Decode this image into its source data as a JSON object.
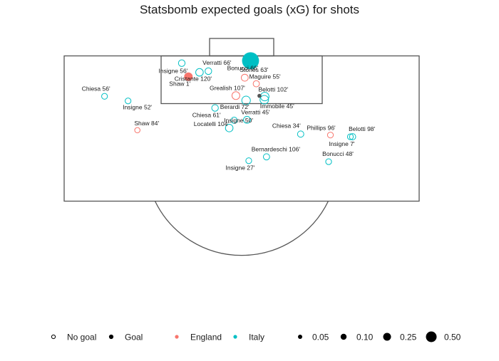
{
  "chart_data": {
    "type": "scatter",
    "title": "Statsbomb expected goals (xG) for shots",
    "xlim": [
      0,
      80
    ],
    "ylim": [
      60,
      120
    ],
    "teams": [
      {
        "name": "England",
        "color": "#F8766D"
      },
      {
        "name": "Italy",
        "color": "#00BFC4"
      }
    ],
    "outcome_legend": [
      {
        "label": "No goal",
        "goal": false
      },
      {
        "label": "Goal",
        "goal": true
      }
    ],
    "size_legend": [
      {
        "label": "0.05",
        "value": 0.05
      },
      {
        "label": "0.10",
        "value": 0.1
      },
      {
        "label": "0.25",
        "value": 0.25
      },
      {
        "label": "0.50",
        "value": 0.5
      }
    ],
    "shots": [
      {
        "label": "Bonucci 66'",
        "team": "Italy",
        "goal": true,
        "xg": 0.7,
        "x": 42.0,
        "y": 118.0
      },
      {
        "label": "Insigne 56'",
        "team": "Italy",
        "goal": false,
        "xg": 0.05,
        "x": 26.5,
        "y": 117.0
      },
      {
        "label": "Verratti 66'",
        "team": "Italy",
        "goal": false,
        "xg": 0.05,
        "x": 32.5,
        "y": 113.7
      },
      {
        "label": "Cristante 120'",
        "team": "Italy",
        "goal": false,
        "xg": 0.08,
        "x": 30.5,
        "y": 113.2
      },
      {
        "label": "Shaw 1'",
        "team": "England",
        "goal": true,
        "xg": 0.09,
        "x": 28.0,
        "y": 111.4
      },
      {
        "label": "Stones 63'",
        "team": "England",
        "goal": false,
        "xg": 0.06,
        "x": 40.7,
        "y": 111.0
      },
      {
        "label": "Maguire 55'",
        "team": "England",
        "goal": false,
        "xg": 0.04,
        "x": 43.3,
        "y": 108.5
      },
      {
        "label": "Grealish 107'",
        "team": "England",
        "goal": false,
        "xg": 0.09,
        "x": 38.7,
        "y": 103.6
      },
      {
        "label": "Belotti 102'",
        "team": "Italy",
        "goal": false,
        "xg": 0.12,
        "x": 45.2,
        "y": 103.2
      },
      {
        "label": "Berardi 72'",
        "team": "Italy",
        "goal": false,
        "xg": 0.12,
        "x": 41.0,
        "y": 101.6
      },
      {
        "label": "Immobile 45'",
        "team": "Italy",
        "goal": false,
        "xg": 0.12,
        "x": 45.1,
        "y": 101.9
      },
      {
        "label": "Chiesa 56'",
        "team": "Italy",
        "goal": false,
        "xg": 0.03,
        "x": 9.1,
        "y": 103.3
      },
      {
        "label": "Insigne 52'",
        "team": "Italy",
        "goal": false,
        "xg": 0.03,
        "x": 14.4,
        "y": 101.4
      },
      {
        "label": "Chiesa 61'",
        "team": "Italy",
        "goal": false,
        "xg": 0.05,
        "x": 34.0,
        "y": 98.5
      },
      {
        "label": "Verratti 45'",
        "team": "Italy",
        "goal": false,
        "xg": 0.06,
        "x": 41.2,
        "y": 93.6
      },
      {
        "label": "Locatelli 104'",
        "team": "Italy",
        "goal": false,
        "xg": 0.04,
        "x": 38.3,
        "y": 93.4
      },
      {
        "label": "Insigne 50'",
        "team": "Italy",
        "goal": false,
        "xg": 0.08,
        "x": 37.2,
        "y": 90.2
      },
      {
        "label": "Shaw 84'",
        "team": "England",
        "goal": false,
        "xg": 0.02,
        "x": 16.5,
        "y": 89.3
      },
      {
        "label": "Chiesa 34'",
        "team": "Italy",
        "goal": false,
        "xg": 0.04,
        "x": 53.3,
        "y": 87.7
      },
      {
        "label": "Phillips 96'",
        "team": "England",
        "goal": false,
        "xg": 0.03,
        "x": 60.0,
        "y": 87.3
      },
      {
        "label": "Belotti 98'",
        "team": "Italy",
        "goal": false,
        "xg": 0.04,
        "x": 65.0,
        "y": 86.6
      },
      {
        "label": "Insigne 7'",
        "team": "Italy",
        "goal": false,
        "xg": 0.03,
        "x": 64.5,
        "y": 86.6
      },
      {
        "label": "Bernardeschi 106'",
        "team": "Italy",
        "goal": false,
        "xg": 0.04,
        "x": 45.6,
        "y": 78.3
      },
      {
        "label": "Bonucci 48'",
        "team": "Italy",
        "goal": false,
        "xg": 0.03,
        "x": 59.6,
        "y": 76.3
      },
      {
        "label": "Insigne 27'",
        "team": "Italy",
        "goal": false,
        "xg": 0.03,
        "x": 41.6,
        "y": 76.7
      }
    ],
    "center_marker": {
      "x": 44.0,
      "y": 103.5
    }
  }
}
